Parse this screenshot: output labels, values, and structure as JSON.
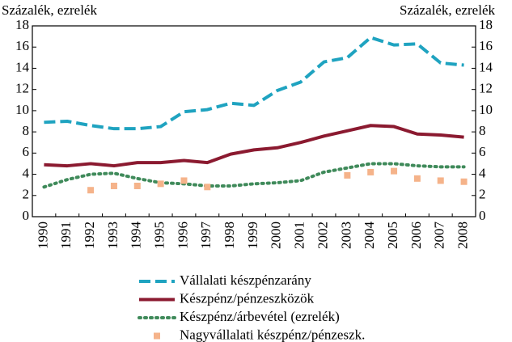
{
  "chart_data": {
    "type": "line",
    "y_label": "Százalék, ezrelék",
    "y2_label": "Százalék, ezrelék",
    "categories": [
      "1990",
      "1991",
      "1992",
      "1993",
      "1994",
      "1995",
      "1996",
      "1997",
      "1998",
      "1999",
      "2000",
      "2001",
      "2002",
      "2003",
      "2004",
      "2005",
      "2006",
      "2007",
      "2008"
    ],
    "series": [
      {
        "name": "Vállalati készpénzarány",
        "color": "#1fa3c0",
        "style": "dashed",
        "values": [
          8.9,
          9.0,
          8.6,
          8.3,
          8.3,
          8.5,
          9.9,
          10.1,
          10.7,
          10.5,
          11.9,
          12.7,
          14.6,
          15.0,
          16.9,
          16.2,
          16.3,
          14.5,
          14.3
        ]
      },
      {
        "name": "Készpénz/pénzeszközök",
        "color": "#8b1a30",
        "style": "solid",
        "values": [
          4.9,
          4.8,
          5.0,
          4.8,
          5.1,
          5.1,
          5.3,
          5.1,
          5.9,
          6.3,
          6.5,
          7.0,
          7.6,
          8.1,
          8.6,
          8.5,
          7.8,
          7.7,
          7.5
        ]
      },
      {
        "name": "Készpénz/árbevétel (ezrelék)",
        "color": "#3f8a5a",
        "style": "dotted",
        "values": [
          2.8,
          3.5,
          4.0,
          4.1,
          3.6,
          3.2,
          3.1,
          2.9,
          2.9,
          3.1,
          3.2,
          3.4,
          4.2,
          4.6,
          5.0,
          5.0,
          4.8,
          4.7,
          4.7
        ]
      },
      {
        "name": "Nagyvállalati készpénz/pénzeszk.",
        "color": "#f5b38a",
        "style": "markers",
        "values": [
          null,
          null,
          2.5,
          2.9,
          2.9,
          3.1,
          3.4,
          2.8,
          null,
          null,
          null,
          null,
          null,
          3.9,
          4.2,
          4.3,
          3.6,
          3.4,
          3.3
        ]
      }
    ],
    "ylim": [
      0,
      18
    ],
    "yticks": [
      0,
      2,
      4,
      6,
      8,
      10,
      12,
      14,
      16,
      18
    ],
    "y2lim": [
      0,
      18
    ],
    "y2ticks": [
      0,
      2,
      4,
      6,
      8,
      10,
      12,
      14,
      16,
      18
    ]
  }
}
